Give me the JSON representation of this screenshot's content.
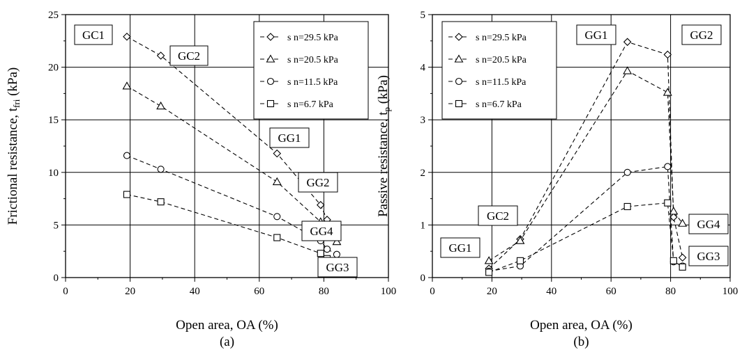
{
  "chart_data": [
    {
      "type": "line",
      "panel_label": "(a)",
      "xlabel": "Open area, OA (%)",
      "ylabel": "Frictional resistance, t",
      "ylabel_sub": "fri",
      "ylabel_unit": " (kPa)",
      "xlim": [
        0,
        100
      ],
      "ylim": [
        0,
        25
      ],
      "xticks": [
        0,
        20,
        40,
        60,
        80,
        100
      ],
      "yticks": [
        0,
        5,
        10,
        15,
        20,
        25
      ],
      "grid": true,
      "legend_position": "top-right",
      "series": [
        {
          "name": "s n=29.5 kPa",
          "marker": "diamond",
          "x": [
            19,
            29.5,
            65.5,
            79,
            81,
            84
          ],
          "y": [
            22.9,
            21.1,
            11.8,
            6.9,
            5.5,
            4.5
          ]
        },
        {
          "name": "s n=20.5 kPa",
          "marker": "triangle",
          "x": [
            19,
            29.5,
            65.5,
            79,
            81,
            84
          ],
          "y": [
            18.2,
            16.3,
            9.1,
            5.3,
            4.2,
            3.4
          ]
        },
        {
          "name": "s n=11.5 kPa",
          "marker": "circle",
          "x": [
            19,
            29.5,
            65.5,
            79,
            81,
            84
          ],
          "y": [
            11.6,
            10.3,
            5.8,
            3.5,
            2.7,
            2.2
          ]
        },
        {
          "name": "s n=6.7 kPa",
          "marker": "square",
          "x": [
            19,
            29.5,
            65.5,
            79,
            81,
            84
          ],
          "y": [
            7.9,
            7.2,
            3.8,
            2.3,
            1.8,
            1.5
          ]
        }
      ],
      "annotations": [
        {
          "text": "GC1"
        },
        {
          "text": "GC2"
        },
        {
          "text": "GG1"
        },
        {
          "text": "GG2"
        },
        {
          "text": "GG4"
        },
        {
          "text": "GG3"
        }
      ]
    },
    {
      "type": "line",
      "panel_label": "(b)",
      "xlabel": "Open area, OA (%)",
      "ylabel": "Passive resistance, t",
      "ylabel_sub": "p",
      "ylabel_unit": " (kPa)",
      "xlim": [
        0,
        100
      ],
      "ylim": [
        0,
        5
      ],
      "xticks": [
        0,
        20,
        40,
        60,
        80,
        100
      ],
      "yticks": [
        0,
        1,
        2,
        3,
        4,
        5
      ],
      "grid": true,
      "legend_position": "top-left",
      "series": [
        {
          "name": "s n=29.5 kPa",
          "marker": "diamond",
          "x": [
            19,
            29.5,
            65.5,
            79,
            81,
            84
          ],
          "y": [
            0.17,
            0.73,
            4.48,
            4.24,
            1.15,
            0.38
          ]
        },
        {
          "name": "s n=20.5 kPa",
          "marker": "triangle",
          "x": [
            19,
            29.5,
            65.5,
            79,
            81,
            84
          ],
          "y": [
            0.32,
            0.7,
            3.93,
            3.52,
            1.26,
            1.03
          ]
        },
        {
          "name": "s n=11.5 kPa",
          "marker": "circle",
          "x": [
            19,
            29.5,
            65.5,
            79,
            81,
            84
          ],
          "y": [
            0.12,
            0.22,
            2.0,
            2.11,
            0.3,
            0.22
          ]
        },
        {
          "name": "s n=6.7 kPa",
          "marker": "square",
          "x": [
            19,
            29.5,
            65.5,
            79,
            81,
            84
          ],
          "y": [
            0.1,
            0.32,
            1.35,
            1.42,
            0.32,
            0.2
          ]
        }
      ],
      "annotations": [
        {
          "text": "GG1"
        },
        {
          "text": "GG2"
        },
        {
          "text": "GC2"
        },
        {
          "text": "GG1"
        },
        {
          "text": "GG4"
        },
        {
          "text": "GG3"
        }
      ]
    }
  ]
}
